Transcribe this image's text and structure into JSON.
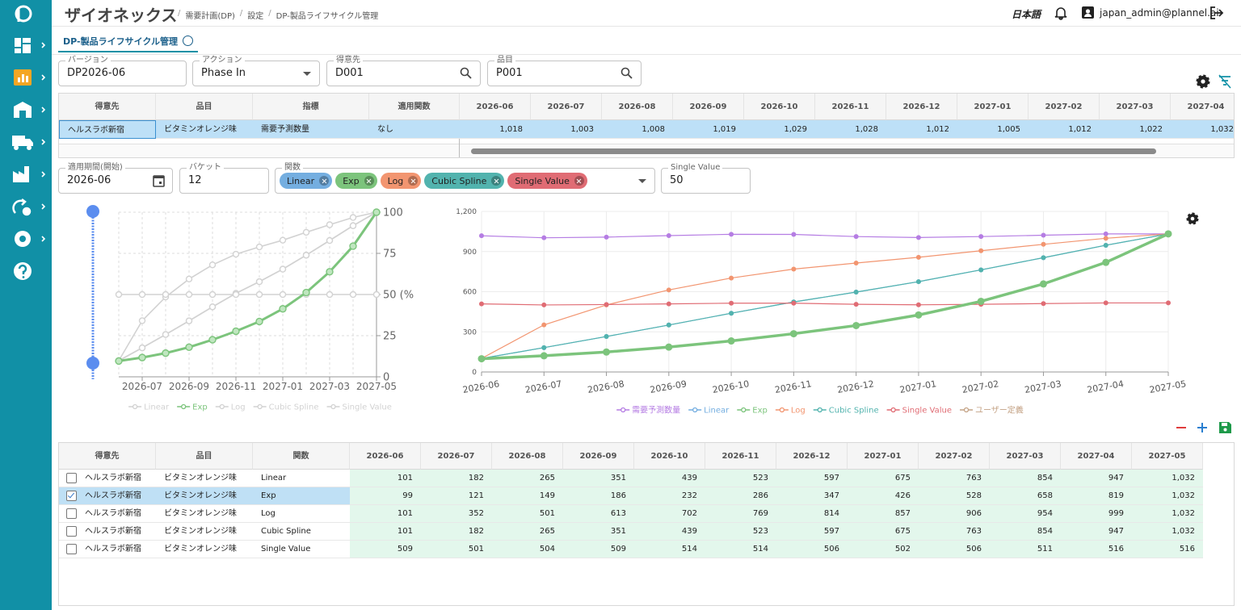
{
  "header": {
    "brand": "ザイオネックス",
    "breadcrumbs": [
      "需要計画(DP)",
      "設定",
      "DP-製品ライフサイクル管理"
    ],
    "language": "日本語",
    "user": "japan_admin@plannel.ai"
  },
  "tab": "DP-製品ライフサイクル管理",
  "filters": [
    {
      "label": "バージョン",
      "value": "DP2026-06"
    },
    {
      "label": "アクション",
      "value": "Phase In"
    },
    {
      "label": "得意先",
      "value": "D001"
    },
    {
      "label": "品目",
      "value": "P001"
    }
  ],
  "forecast_table": {
    "columns": [
      "得意先",
      "品目",
      "指標",
      "適用関数",
      "2026-06",
      "2026-07",
      "2026-08",
      "2026-09",
      "2026-10",
      "2026-11",
      "2026-12",
      "2027-01",
      "2027-02",
      "2027-03",
      "2027-04"
    ],
    "rows": [
      [
        "ヘルスラボ新宿",
        "ビタミンオレンジ味",
        "需要予測数量",
        "なし",
        "1,018",
        "1,003",
        "1,008",
        "1,019",
        "1,029",
        "1,028",
        "1,012",
        "1,005",
        "1,012",
        "1,022",
        "1,032"
      ]
    ]
  },
  "settings": {
    "start": {
      "label": "適用期間(開始)",
      "value": "2026-06"
    },
    "bucket": {
      "label": "バケット",
      "value": "12"
    },
    "functions": {
      "label": "関数",
      "chips": [
        "Linear",
        "Exp",
        "Log",
        "Cubic Spline",
        "Single Value"
      ]
    },
    "single_value": {
      "label": "Single Value",
      "value": "50"
    }
  },
  "chart_data": [
    {
      "type": "line",
      "categories": [
        null,
        "2026-07",
        null,
        "2026-09",
        null,
        "2026-11",
        null,
        "2027-01",
        null,
        "2027-03",
        null,
        "2027-05"
      ],
      "ylim": [
        0,
        100
      ],
      "yticks": [
        0,
        25,
        {
          "value": 50,
          "label": "50 (%)"
        },
        75,
        100
      ],
      "grid": true,
      "y_axis_side": "right",
      "legend": "bottom",
      "series": [
        {
          "name": "Linear",
          "color": "#d2d2d2",
          "values": [
            9.8,
            17.6,
            25.7,
            34.0,
            42.5,
            50.7,
            57.8,
            65.4,
            73.9,
            82.8,
            91.8,
            100
          ]
        },
        {
          "name": "Exp",
          "color": "#7cc47c",
          "values": [
            9.6,
            11.7,
            14.4,
            18.0,
            22.5,
            27.7,
            33.6,
            41.3,
            51.2,
            63.8,
            79.4,
            100
          ]
        },
        {
          "name": "Log",
          "color": "#d2d2d2",
          "values": [
            9.8,
            34.1,
            48.5,
            59.4,
            68.0,
            74.5,
            78.9,
            83.0,
            87.8,
            92.4,
            96.8,
            100
          ]
        },
        {
          "name": "Cubic Spline",
          "color": "#d2d2d2",
          "values": [
            9.8,
            17.6,
            25.7,
            34.0,
            42.5,
            50.7,
            57.8,
            65.4,
            73.9,
            82.8,
            91.8,
            100
          ]
        },
        {
          "name": "Single Value",
          "color": "#d2d2d2",
          "values": [
            50,
            50,
            50,
            50,
            50,
            50,
            50,
            50,
            50,
            50,
            50,
            50
          ]
        }
      ]
    },
    {
      "type": "line",
      "categories": [
        "2026-06",
        "2026-07",
        "2026-08",
        "2026-09",
        "2026-10",
        "2026-11",
        "2026-12",
        "2027-01",
        "2027-02",
        "2027-03",
        "2027-04",
        "2027-05"
      ],
      "ylim": [
        0,
        1200
      ],
      "yticks": [
        0,
        300,
        600,
        900,
        {
          "value": 1200,
          "label": "1,200"
        }
      ],
      "grid": true,
      "legend": "bottom",
      "series": [
        {
          "name": "需要予測数量",
          "color": "#b57de3",
          "values": [
            1018,
            1003,
            1008,
            1019,
            1029,
            1028,
            1012,
            1005,
            1012,
            1022,
            1032,
            1032
          ]
        },
        {
          "name": "Linear",
          "color": "#74aee0",
          "values": [
            101,
            182,
            265,
            351,
            439,
            523,
            597,
            675,
            763,
            854,
            947,
            1032
          ]
        },
        {
          "name": "Exp",
          "color": "#7cc47c",
          "values": [
            99,
            121,
            149,
            186,
            232,
            286,
            347,
            426,
            528,
            658,
            819,
            1032
          ]
        },
        {
          "name": "Log",
          "color": "#f29570",
          "values": [
            101,
            352,
            501,
            613,
            702,
            769,
            814,
            857,
            906,
            954,
            999,
            1032
          ]
        },
        {
          "name": "Cubic Spline",
          "color": "#52b3ae",
          "values": [
            101,
            182,
            265,
            351,
            439,
            523,
            597,
            675,
            763,
            854,
            947,
            1032
          ]
        },
        {
          "name": "Single Value",
          "color": "#e06c74",
          "values": [
            509,
            501,
            504,
            509,
            514,
            514,
            506,
            502,
            506,
            511,
            516,
            516
          ]
        },
        {
          "name": "ユーザー定義",
          "color": "#c4a386",
          "values": [
            null,
            null,
            null,
            null,
            null,
            null,
            null,
            null,
            null,
            null,
            null,
            null
          ]
        }
      ]
    }
  ],
  "result_table": {
    "columns": [
      "得意先",
      "品目",
      "関数",
      "2026-06",
      "2026-07",
      "2026-08",
      "2026-09",
      "2026-10",
      "2026-11",
      "2026-12",
      "2027-01",
      "2027-02",
      "2027-03",
      "2027-04",
      "2027-05"
    ],
    "rows": [
      [
        "ヘルスラボ新宿",
        "ビタミンオレンジ味",
        "Linear",
        "101",
        "182",
        "265",
        "351",
        "439",
        "523",
        "597",
        "675",
        "763",
        "854",
        "947",
        "1,032"
      ],
      [
        "ヘルスラボ新宿",
        "ビタミンオレンジ味",
        "Exp",
        "99",
        "121",
        "149",
        "186",
        "232",
        "286",
        "347",
        "426",
        "528",
        "658",
        "819",
        "1,032"
      ],
      [
        "ヘルスラボ新宿",
        "ビタミンオレンジ味",
        "Log",
        "101",
        "352",
        "501",
        "613",
        "702",
        "769",
        "814",
        "857",
        "906",
        "954",
        "999",
        "1,032"
      ],
      [
        "ヘルスラボ新宿",
        "ビタミンオレンジ味",
        "Cubic Spline",
        "101",
        "182",
        "265",
        "351",
        "439",
        "523",
        "597",
        "675",
        "763",
        "854",
        "947",
        "1,032"
      ],
      [
        "ヘルスラボ新宿",
        "ビタミンオレンジ味",
        "Single Value",
        "509",
        "501",
        "504",
        "509",
        "514",
        "514",
        "506",
        "502",
        "506",
        "511",
        "516",
        "516"
      ]
    ],
    "checked": [
      false,
      true,
      false,
      false,
      false
    ]
  }
}
